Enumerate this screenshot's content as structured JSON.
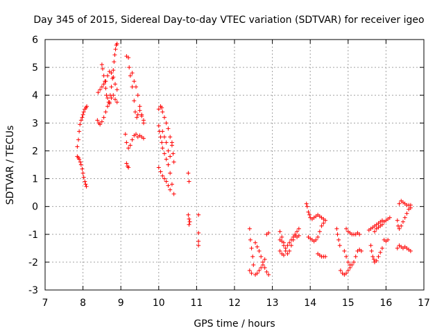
{
  "chart_data": {
    "type": "scatter",
    "title": "Day 345 of 2015, Sidereal Day-to-day VTEC variation (SDTVAR) for receiver igeo",
    "xlabel": "GPS time / hours",
    "ylabel": "SDTVAR / TECUs",
    "xlim": [
      7,
      17
    ],
    "ylim": [
      -3,
      6
    ],
    "x_ticks": [
      "7",
      "8",
      "9",
      "10",
      "11",
      "12",
      "13",
      "14",
      "15",
      "16",
      "17"
    ],
    "y_ticks": [
      "-3",
      "-2",
      "-1",
      "0",
      "1",
      "2",
      "3",
      "4",
      "5",
      "6"
    ],
    "grid": true,
    "marker": "+",
    "color": "#ff0000",
    "series": [
      {
        "name": "SDTVAR",
        "points": [
          [
            7.85,
            2.15
          ],
          [
            7.88,
            2.4
          ],
          [
            7.9,
            2.7
          ],
          [
            7.92,
            2.95
          ],
          [
            7.95,
            3.1
          ],
          [
            7.98,
            3.2
          ],
          [
            8.0,
            3.3
          ],
          [
            8.02,
            3.4
          ],
          [
            8.05,
            3.5
          ],
          [
            8.08,
            3.55
          ],
          [
            8.1,
            3.6
          ],
          [
            7.85,
            1.8
          ],
          [
            7.88,
            1.75
          ],
          [
            7.9,
            1.7
          ],
          [
            7.93,
            1.6
          ],
          [
            7.95,
            1.5
          ],
          [
            7.98,
            1.35
          ],
          [
            8.0,
            1.2
          ],
          [
            8.02,
            1.05
          ],
          [
            8.05,
            0.9
          ],
          [
            8.07,
            0.8
          ],
          [
            8.09,
            0.72
          ],
          [
            8.38,
            3.1
          ],
          [
            8.42,
            3.0
          ],
          [
            8.45,
            2.95
          ],
          [
            8.5,
            3.05
          ],
          [
            8.55,
            3.2
          ],
          [
            8.6,
            3.4
          ],
          [
            8.65,
            3.6
          ],
          [
            8.7,
            3.75
          ],
          [
            8.75,
            3.9
          ],
          [
            8.8,
            4.0
          ],
          [
            8.85,
            3.85
          ],
          [
            8.9,
            3.75
          ],
          [
            8.4,
            4.1
          ],
          [
            8.45,
            4.2
          ],
          [
            8.5,
            4.3
          ],
          [
            8.55,
            4.4
          ],
          [
            8.6,
            4.5
          ],
          [
            8.65,
            4.7
          ],
          [
            8.7,
            4.85
          ],
          [
            8.75,
            4.8
          ],
          [
            8.8,
            4.65
          ],
          [
            8.85,
            4.4
          ],
          [
            8.9,
            4.2
          ],
          [
            8.5,
            5.1
          ],
          [
            8.52,
            4.95
          ],
          [
            8.55,
            4.7
          ],
          [
            8.58,
            4.5
          ],
          [
            8.6,
            4.25
          ],
          [
            8.62,
            4.0
          ],
          [
            8.65,
            3.9
          ],
          [
            8.68,
            3.75
          ],
          [
            8.7,
            3.7
          ],
          [
            8.72,
            4.0
          ],
          [
            8.75,
            4.3
          ],
          [
            8.78,
            4.6
          ],
          [
            8.8,
            4.9
          ],
          [
            8.82,
            5.2
          ],
          [
            8.84,
            5.45
          ],
          [
            8.86,
            5.65
          ],
          [
            8.88,
            5.8
          ],
          [
            8.9,
            5.85
          ],
          [
            9.15,
            5.4
          ],
          [
            9.2,
            5.35
          ],
          [
            9.22,
            5.0
          ],
          [
            9.25,
            4.7
          ],
          [
            9.3,
            4.3
          ],
          [
            9.35,
            3.8
          ],
          [
            9.38,
            3.4
          ],
          [
            9.42,
            3.2
          ],
          [
            9.45,
            3.3
          ],
          [
            9.5,
            3.45
          ],
          [
            9.55,
            3.25
          ],
          [
            9.6,
            3.0
          ],
          [
            9.12,
            2.6
          ],
          [
            9.15,
            2.3
          ],
          [
            9.2,
            2.1
          ],
          [
            9.25,
            2.2
          ],
          [
            9.3,
            2.4
          ],
          [
            9.35,
            2.55
          ],
          [
            9.4,
            2.6
          ],
          [
            9.45,
            2.5
          ],
          [
            9.5,
            2.55
          ],
          [
            9.55,
            2.5
          ],
          [
            9.6,
            2.45
          ],
          [
            9.15,
            1.55
          ],
          [
            9.18,
            1.45
          ],
          [
            9.2,
            1.4
          ],
          [
            9.3,
            4.8
          ],
          [
            9.35,
            4.5
          ],
          [
            9.4,
            4.3
          ],
          [
            9.45,
            4.0
          ],
          [
            9.5,
            3.6
          ],
          [
            9.55,
            3.3
          ],
          [
            9.6,
            3.1
          ],
          [
            10.0,
            3.5
          ],
          [
            10.05,
            3.6
          ],
          [
            10.08,
            3.55
          ],
          [
            10.1,
            3.4
          ],
          [
            10.15,
            3.2
          ],
          [
            10.2,
            3.0
          ],
          [
            10.25,
            2.8
          ],
          [
            10.3,
            2.5
          ],
          [
            10.35,
            2.2
          ],
          [
            10.38,
            1.9
          ],
          [
            10.4,
            1.6
          ],
          [
            10.0,
            2.9
          ],
          [
            10.02,
            2.7
          ],
          [
            10.05,
            2.5
          ],
          [
            10.08,
            2.3
          ],
          [
            10.1,
            2.1
          ],
          [
            10.15,
            1.9
          ],
          [
            10.2,
            1.7
          ],
          [
            10.25,
            1.5
          ],
          [
            10.3,
            1.2
          ],
          [
            10.35,
            0.8
          ],
          [
            10.4,
            0.45
          ],
          [
            10.0,
            1.4
          ],
          [
            10.05,
            1.25
          ],
          [
            10.1,
            1.1
          ],
          [
            10.15,
            1.0
          ],
          [
            10.2,
            0.9
          ],
          [
            10.25,
            0.75
          ],
          [
            10.3,
            0.6
          ],
          [
            10.1,
            2.7
          ],
          [
            10.15,
            2.5
          ],
          [
            10.2,
            2.3
          ],
          [
            10.25,
            2.0
          ],
          [
            10.3,
            1.8
          ],
          [
            10.35,
            2.3
          ],
          [
            10.78,
            1.2
          ],
          [
            10.8,
            0.9
          ],
          [
            10.78,
            -0.3
          ],
          [
            10.8,
            -0.45
          ],
          [
            10.82,
            -0.55
          ],
          [
            10.8,
            -0.65
          ],
          [
            11.05,
            -0.3
          ],
          [
            11.05,
            -0.95
          ],
          [
            11.05,
            -1.25
          ],
          [
            11.05,
            -1.4
          ],
          [
            12.4,
            -0.8
          ],
          [
            12.42,
            -1.2
          ],
          [
            12.45,
            -1.5
          ],
          [
            12.48,
            -1.8
          ],
          [
            12.5,
            -2.1
          ],
          [
            12.45,
            -2.4
          ],
          [
            12.4,
            -2.3
          ],
          [
            12.55,
            -1.3
          ],
          [
            12.6,
            -1.45
          ],
          [
            12.65,
            -1.6
          ],
          [
            12.7,
            -1.8
          ],
          [
            12.75,
            -2.0
          ],
          [
            12.8,
            -2.2
          ],
          [
            12.85,
            -2.35
          ],
          [
            12.9,
            -2.45
          ],
          [
            12.55,
            -2.45
          ],
          [
            12.6,
            -2.4
          ],
          [
            12.65,
            -2.3
          ],
          [
            12.7,
            -2.2
          ],
          [
            12.75,
            -2.1
          ],
          [
            12.8,
            -1.9
          ],
          [
            12.85,
            -1.0
          ],
          [
            12.9,
            -0.95
          ],
          [
            13.2,
            -0.9
          ],
          [
            13.25,
            -1.1
          ],
          [
            13.3,
            -1.3
          ],
          [
            13.35,
            -1.5
          ],
          [
            13.4,
            -1.7
          ],
          [
            13.45,
            -1.6
          ],
          [
            13.5,
            -1.4
          ],
          [
            13.55,
            -1.2
          ],
          [
            13.6,
            -1.0
          ],
          [
            13.65,
            -0.9
          ],
          [
            13.7,
            -0.8
          ],
          [
            13.2,
            -1.6
          ],
          [
            13.25,
            -1.7
          ],
          [
            13.3,
            -1.75
          ],
          [
            13.35,
            -1.6
          ],
          [
            13.4,
            -1.4
          ],
          [
            13.45,
            -1.3
          ],
          [
            13.5,
            -1.2
          ],
          [
            13.55,
            -1.1
          ],
          [
            13.6,
            -1.05
          ],
          [
            13.65,
            -1.1
          ],
          [
            13.7,
            -1.05
          ],
          [
            13.2,
            -1.2
          ],
          [
            13.25,
            -1.25
          ],
          [
            13.3,
            -1.4
          ],
          [
            13.9,
            0.1
          ],
          [
            13.92,
            0.0
          ],
          [
            13.95,
            -0.2
          ],
          [
            13.98,
            -0.3
          ],
          [
            14.0,
            -0.4
          ],
          [
            14.05,
            -0.45
          ],
          [
            14.1,
            -0.4
          ],
          [
            14.15,
            -0.35
          ],
          [
            14.2,
            -0.3
          ],
          [
            14.25,
            -0.35
          ],
          [
            14.3,
            -0.4
          ],
          [
            14.35,
            -0.45
          ],
          [
            14.4,
            -0.5
          ],
          [
            13.95,
            -1.1
          ],
          [
            14.0,
            -1.15
          ],
          [
            14.05,
            -1.2
          ],
          [
            14.1,
            -1.25
          ],
          [
            14.15,
            -1.2
          ],
          [
            14.2,
            -1.1
          ],
          [
            14.25,
            -0.9
          ],
          [
            14.3,
            -0.7
          ],
          [
            14.35,
            -0.6
          ],
          [
            14.2,
            -1.7
          ],
          [
            14.25,
            -1.75
          ],
          [
            14.3,
            -1.8
          ],
          [
            14.35,
            -1.8
          ],
          [
            14.4,
            -1.8
          ],
          [
            14.7,
            -0.8
          ],
          [
            14.72,
            -1.0
          ],
          [
            14.75,
            -1.2
          ],
          [
            14.78,
            -1.4
          ],
          [
            14.8,
            -2.3
          ],
          [
            14.85,
            -2.4
          ],
          [
            14.9,
            -2.45
          ],
          [
            14.95,
            -2.4
          ],
          [
            15.0,
            -2.3
          ],
          [
            15.05,
            -2.2
          ],
          [
            15.1,
            -2.1
          ],
          [
            15.15,
            -2.0
          ],
          [
            15.2,
            -1.8
          ],
          [
            15.25,
            -1.6
          ],
          [
            15.3,
            -1.55
          ],
          [
            15.35,
            -1.6
          ],
          [
            14.9,
            -1.6
          ],
          [
            14.95,
            -1.8
          ],
          [
            15.0,
            -2.0
          ],
          [
            15.05,
            -2.1
          ],
          [
            14.95,
            -0.8
          ],
          [
            15.0,
            -0.9
          ],
          [
            15.05,
            -0.95
          ],
          [
            15.1,
            -1.0
          ],
          [
            15.15,
            -1.0
          ],
          [
            15.2,
            -1.0
          ],
          [
            15.25,
            -0.95
          ],
          [
            15.3,
            -1.0
          ],
          [
            15.6,
            -1.4
          ],
          [
            15.62,
            -1.6
          ],
          [
            15.65,
            -1.8
          ],
          [
            15.68,
            -1.9
          ],
          [
            15.7,
            -2.0
          ],
          [
            15.75,
            -1.95
          ],
          [
            15.8,
            -1.8
          ],
          [
            15.85,
            -1.65
          ],
          [
            15.9,
            -1.5
          ],
          [
            15.55,
            -0.85
          ],
          [
            15.6,
            -0.8
          ],
          [
            15.65,
            -0.75
          ],
          [
            15.7,
            -0.7
          ],
          [
            15.75,
            -0.65
          ],
          [
            15.8,
            -0.6
          ],
          [
            15.85,
            -0.55
          ],
          [
            15.9,
            -0.5
          ],
          [
            15.95,
            -0.55
          ],
          [
            16.0,
            -0.5
          ],
          [
            16.05,
            -0.45
          ],
          [
            16.1,
            -0.4
          ],
          [
            15.7,
            -0.9
          ],
          [
            15.75,
            -0.8
          ],
          [
            15.8,
            -0.75
          ],
          [
            15.85,
            -0.7
          ],
          [
            15.9,
            -0.65
          ],
          [
            15.95,
            -1.2
          ],
          [
            16.0,
            -1.25
          ],
          [
            16.05,
            -1.2
          ],
          [
            16.3,
            -0.5
          ],
          [
            16.32,
            -0.7
          ],
          [
            16.35,
            -0.8
          ],
          [
            16.4,
            -0.7
          ],
          [
            16.45,
            -0.55
          ],
          [
            16.5,
            -0.4
          ],
          [
            16.55,
            -0.25
          ],
          [
            16.6,
            -0.1
          ],
          [
            16.65,
            -0.05
          ],
          [
            16.35,
            0.1
          ],
          [
            16.4,
            0.2
          ],
          [
            16.45,
            0.15
          ],
          [
            16.5,
            0.1
          ],
          [
            16.55,
            0.05
          ],
          [
            16.6,
            0.05
          ],
          [
            16.65,
            0.05
          ],
          [
            16.3,
            -1.5
          ],
          [
            16.35,
            -1.4
          ],
          [
            16.4,
            -1.45
          ],
          [
            16.45,
            -1.5
          ],
          [
            16.5,
            -1.45
          ],
          [
            16.55,
            -1.5
          ],
          [
            16.6,
            -1.55
          ],
          [
            16.65,
            -1.6
          ]
        ]
      }
    ]
  }
}
